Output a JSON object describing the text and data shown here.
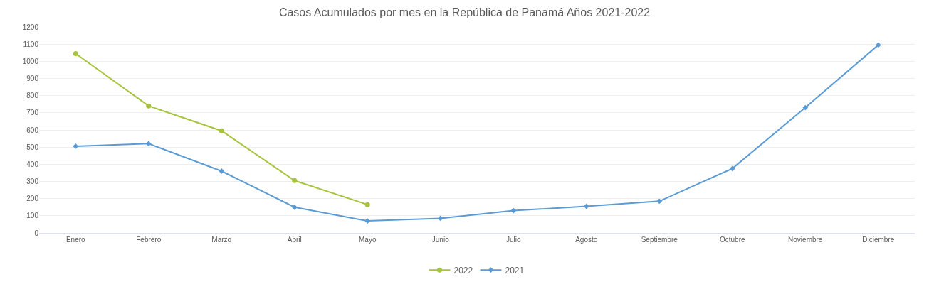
{
  "chart_data": {
    "type": "line",
    "title": "Casos Acumulados por mes en la República de Panamá Años 2021-2022",
    "categories": [
      "Enero",
      "Febrero",
      "Marzo",
      "Abril",
      "Mayo",
      "Junio",
      "Julio",
      "Agosto",
      "Septiembre",
      "Octubre",
      "Noviembre",
      "Diciembre"
    ],
    "series": [
      {
        "name": "2022",
        "color": "#a5c33b",
        "marker": "circle",
        "values": [
          1045,
          740,
          595,
          305,
          165,
          null,
          null,
          null,
          null,
          null,
          null,
          null
        ]
      },
      {
        "name": "2021",
        "color": "#5b9bd5",
        "marker": "diamond",
        "values": [
          505,
          520,
          360,
          150,
          70,
          85,
          130,
          155,
          185,
          375,
          730,
          1095
        ]
      }
    ],
    "ylim": [
      0,
      1200
    ],
    "yticks": [
      0,
      100,
      200,
      300,
      400,
      500,
      600,
      700,
      800,
      900,
      1000,
      1100,
      1200
    ],
    "grid": "y",
    "legend": "bottom",
    "line_style": "solid"
  }
}
